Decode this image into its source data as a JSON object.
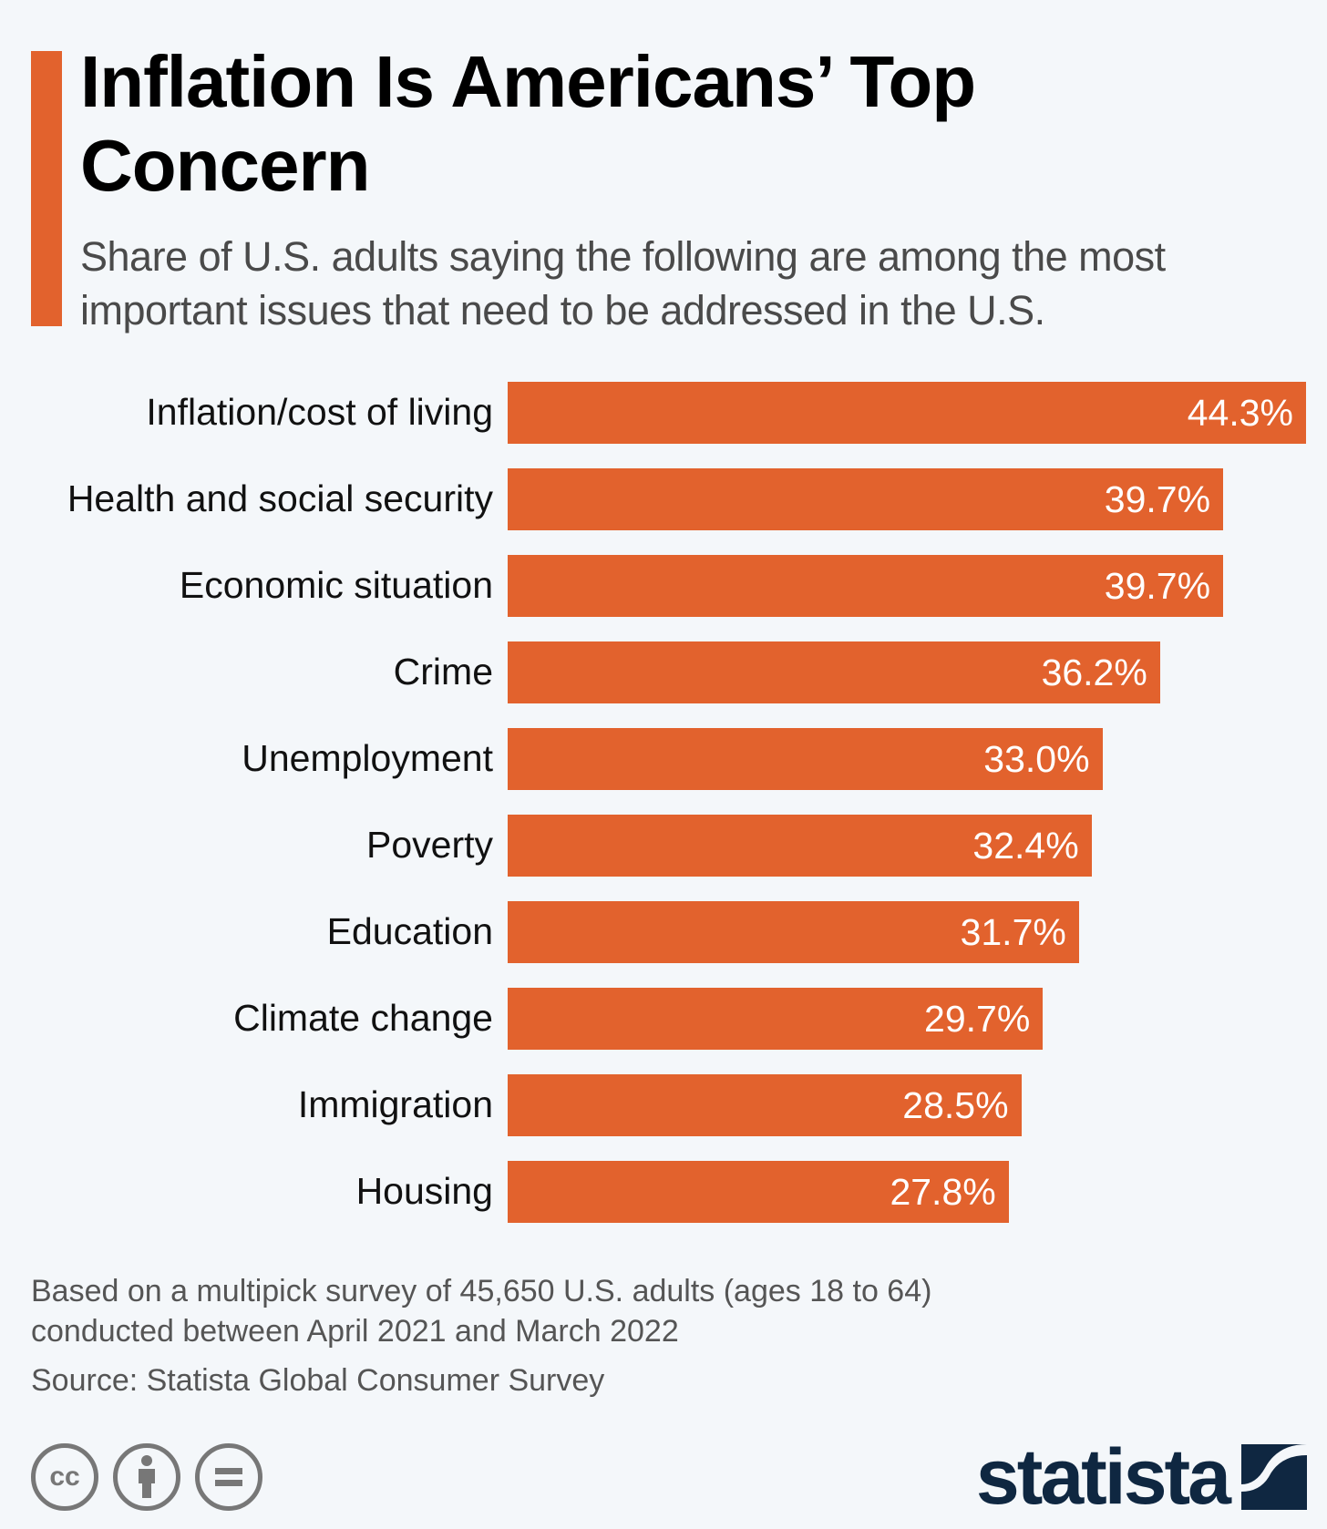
{
  "chart_data": {
    "type": "bar",
    "orientation": "horizontal",
    "title": "Inflation Is Americans’ Top Concern",
    "subtitle": "Share of U.S. adults saying the following are among the most important issues that need to be addressed in the U.S.",
    "categories": [
      "Inflation/cost of living",
      "Health and social security",
      "Economic situation",
      "Crime",
      "Unemployment",
      "Poverty",
      "Education",
      "Climate change",
      "Immigration",
      "Housing"
    ],
    "values": [
      44.3,
      39.7,
      39.7,
      36.2,
      33.0,
      32.4,
      31.7,
      29.7,
      28.5,
      27.8
    ],
    "value_labels": [
      "44.3%",
      "39.7%",
      "39.7%",
      "36.2%",
      "33.0%",
      "32.4%",
      "31.7%",
      "29.7%",
      "28.5%",
      "27.8%"
    ],
    "xlabel": "",
    "ylabel": "",
    "xlim": [
      0,
      44.3
    ],
    "bar_color": "#e2622d"
  },
  "footer": {
    "note_line1": "Based on a multipick survey of 45,650 U.S. adults (ages 18 to 64)",
    "note_line2": "conducted between April 2021 and March 2022",
    "source": "Source: Statista Global Consumer Survey",
    "license_icons": [
      "cc-icon",
      "attribution-icon",
      "no-derivatives-icon"
    ],
    "cc_text": "cc",
    "logo": "statista",
    "logo_color": "#0f2741"
  }
}
